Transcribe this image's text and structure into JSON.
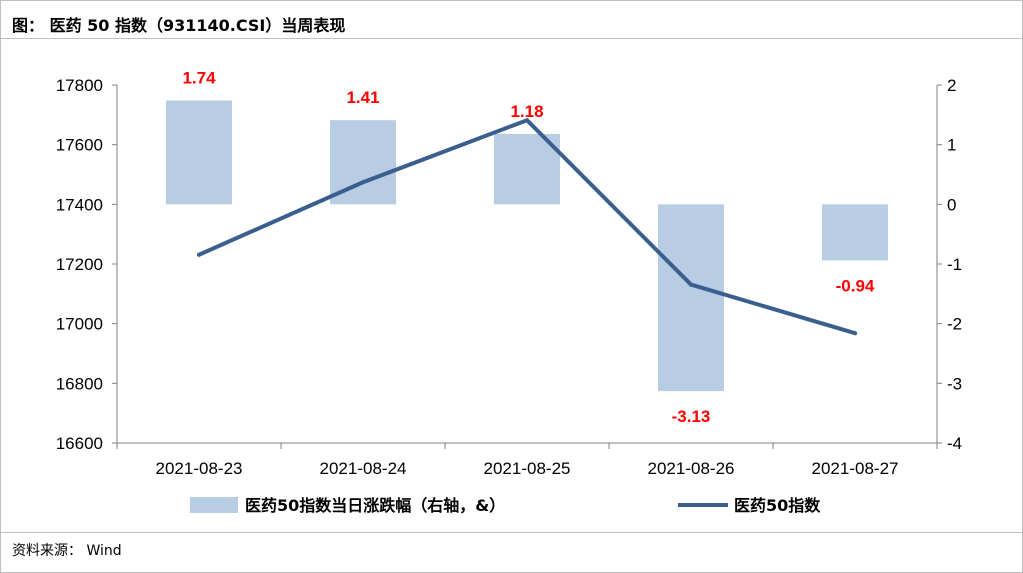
{
  "header": {
    "title": "图：  医药 50 指数（931140.CSI）当周表现"
  },
  "footer": {
    "source": "资料来源： Wind"
  },
  "chart_data": {
    "type": "bar+line",
    "categories": [
      "2021-08-23",
      "2021-08-24",
      "2021-08-25",
      "2021-08-26",
      "2021-08-27"
    ],
    "bar_series": {
      "name": "医药50指数当日涨跌幅（右轴，&）",
      "axis": "right",
      "values": [
        1.74,
        1.41,
        1.18,
        -3.13,
        -0.94
      ],
      "labels": [
        "1.74",
        "1.41",
        "1.18",
        "-3.13",
        "-0.94"
      ],
      "color": "#b8cce4",
      "label_color": "#ff0000"
    },
    "line_series": {
      "name": "医药50指数",
      "axis": "left",
      "values": [
        17231,
        17474,
        17682,
        17131,
        16968
      ],
      "color": "#3a5f8f"
    },
    "left_axis": {
      "ylim": [
        16600,
        17800
      ],
      "ticks": [
        "16600",
        "16800",
        "17000",
        "17200",
        "17400",
        "17600",
        "17800"
      ]
    },
    "right_axis": {
      "ylim": [
        -4,
        2
      ],
      "ticks": [
        "-4",
        "-3",
        "-2",
        "-1",
        "0",
        "1",
        "2"
      ]
    },
    "grid": false,
    "legend_position": "bottom"
  }
}
